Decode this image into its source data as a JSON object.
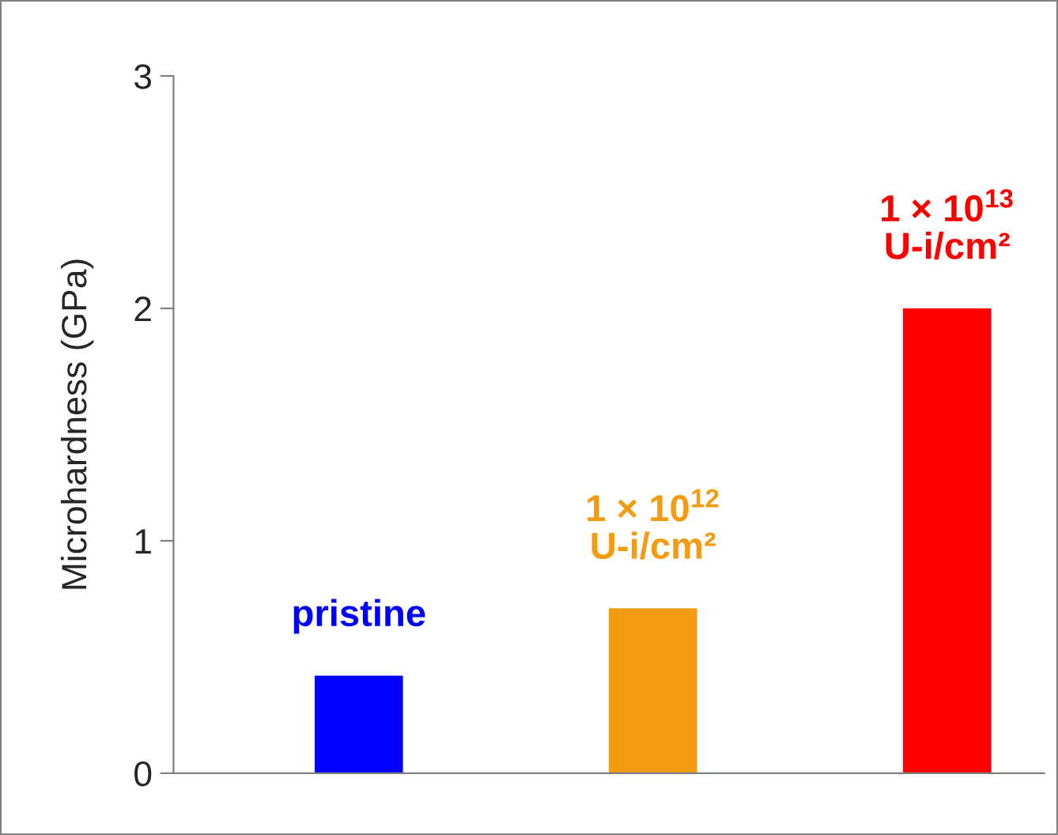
{
  "chart_data": {
    "type": "bar",
    "categories": [
      "pristine",
      "1 × 10$^{12}$\nU-i/cm²",
      "1 × 10$^{13}$\nU-i/cm²"
    ],
    "values": [
      0.42,
      0.71,
      2.0
    ],
    "colors": [
      "#0000ff",
      "#f39c12",
      "#ff0000"
    ],
    "ylabel": "Microhardness (GPa)",
    "ylim": [
      0,
      3
    ],
    "yticks": [
      0,
      1,
      2,
      3
    ],
    "grid": false,
    "legend": false
  }
}
